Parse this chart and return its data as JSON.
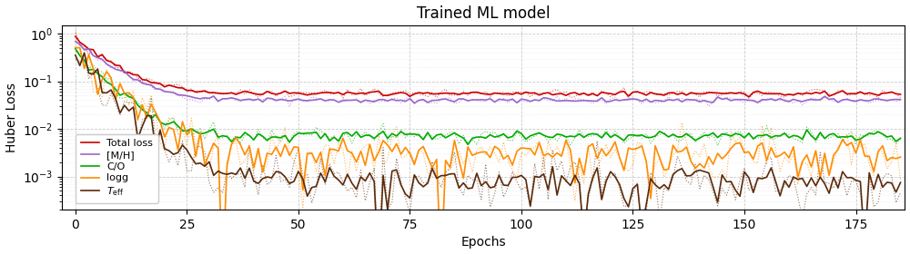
{
  "title": "Trained ML model",
  "xlabel": "Epochs",
  "ylabel": "Huber Loss",
  "xlim": [
    -3,
    186
  ],
  "ylim_log": [
    0.0002,
    1.5
  ],
  "xticks": [
    0,
    25,
    50,
    75,
    100,
    125,
    150,
    175
  ],
  "colors": {
    "total": "#cc0000",
    "logg": "#ff8c00",
    "co": "#00aa00",
    "mh": "#9966cc",
    "teff": "#5c2a0a"
  },
  "legend_labels": {
    "total": "Total loss",
    "logg": "logg",
    "co": "C/O",
    "mh": "[M/H]",
    "teff": "$T_{\\mathrm{eff}}$"
  },
  "n_epochs": 186,
  "seed": 7
}
